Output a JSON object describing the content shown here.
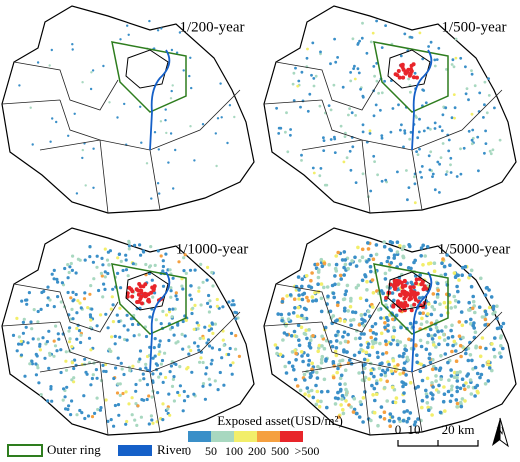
{
  "panels": [
    {
      "title": "1/200-year"
    },
    {
      "title": "1/500-year"
    },
    {
      "title": "1/1000-year"
    },
    {
      "title": "1/5000-year"
    }
  ],
  "legend": {
    "items": [
      {
        "label": "Outer ring",
        "color": "#2e7d1e"
      },
      {
        "label": "River",
        "color": "#1560c8"
      }
    ]
  },
  "colorbar": {
    "title": "Exposed asset(USD/m²)",
    "labels": [
      "0",
      "50",
      "100",
      "200",
      "500",
      ">500"
    ],
    "colors": [
      "#3a8fc8",
      "#a8d8c0",
      "#f2ee6a",
      "#f5a040",
      "#e8252a"
    ]
  },
  "scale_bar": {
    "labels": [
      "0",
      "10",
      "20 km"
    ]
  },
  "north": "N"
}
